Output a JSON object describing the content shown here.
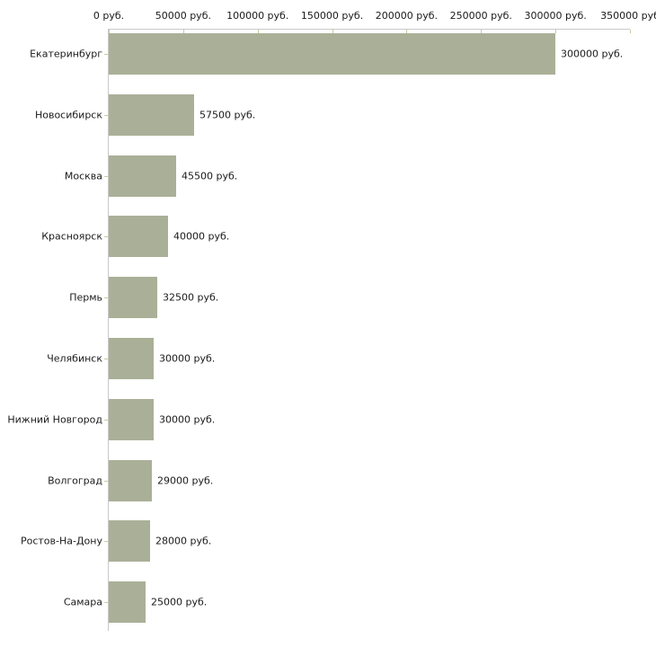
{
  "chart_data": {
    "type": "bar",
    "orientation": "horizontal",
    "title": "",
    "xlabel": "",
    "ylabel": "",
    "categories": [
      "Екатеринбург",
      "Новосибирск",
      "Москва",
      "Красноярск",
      "Пермь",
      "Челябинск",
      "Нижний Новгород",
      "Волгоград",
      "Ростов-На-Дону",
      "Самара"
    ],
    "values": [
      300000,
      57500,
      45500,
      40000,
      32500,
      30000,
      30000,
      29000,
      28000,
      25000
    ],
    "value_labels": [
      "300000 руб.",
      "57500 руб.",
      "45500 руб.",
      "40000 руб.",
      "32500 руб.",
      "30000 руб.",
      "30000 руб.",
      "29000 руб.",
      "28000 руб.",
      "25000 руб."
    ],
    "x_ticks": [
      {
        "value": 0,
        "label": "0 руб."
      },
      {
        "value": 50000,
        "label": "50000 руб."
      },
      {
        "value": 100000,
        "label": "100000 руб."
      },
      {
        "value": 150000,
        "label": "150000 руб."
      },
      {
        "value": 200000,
        "label": "200000 руб."
      },
      {
        "value": 250000,
        "label": "250000 руб."
      },
      {
        "value": 300000,
        "label": "300000 руб."
      },
      {
        "value": 350000,
        "label": "350000 руб"
      }
    ],
    "xlim": [
      0,
      350000
    ],
    "grid": false,
    "legend": false,
    "colors": {
      "bar_fill": "#aab097",
      "axis_line": "#c9c9c9",
      "tick_mark": "#c9c9a1",
      "text": "#1a1a1a",
      "background": "#ffffff"
    }
  }
}
